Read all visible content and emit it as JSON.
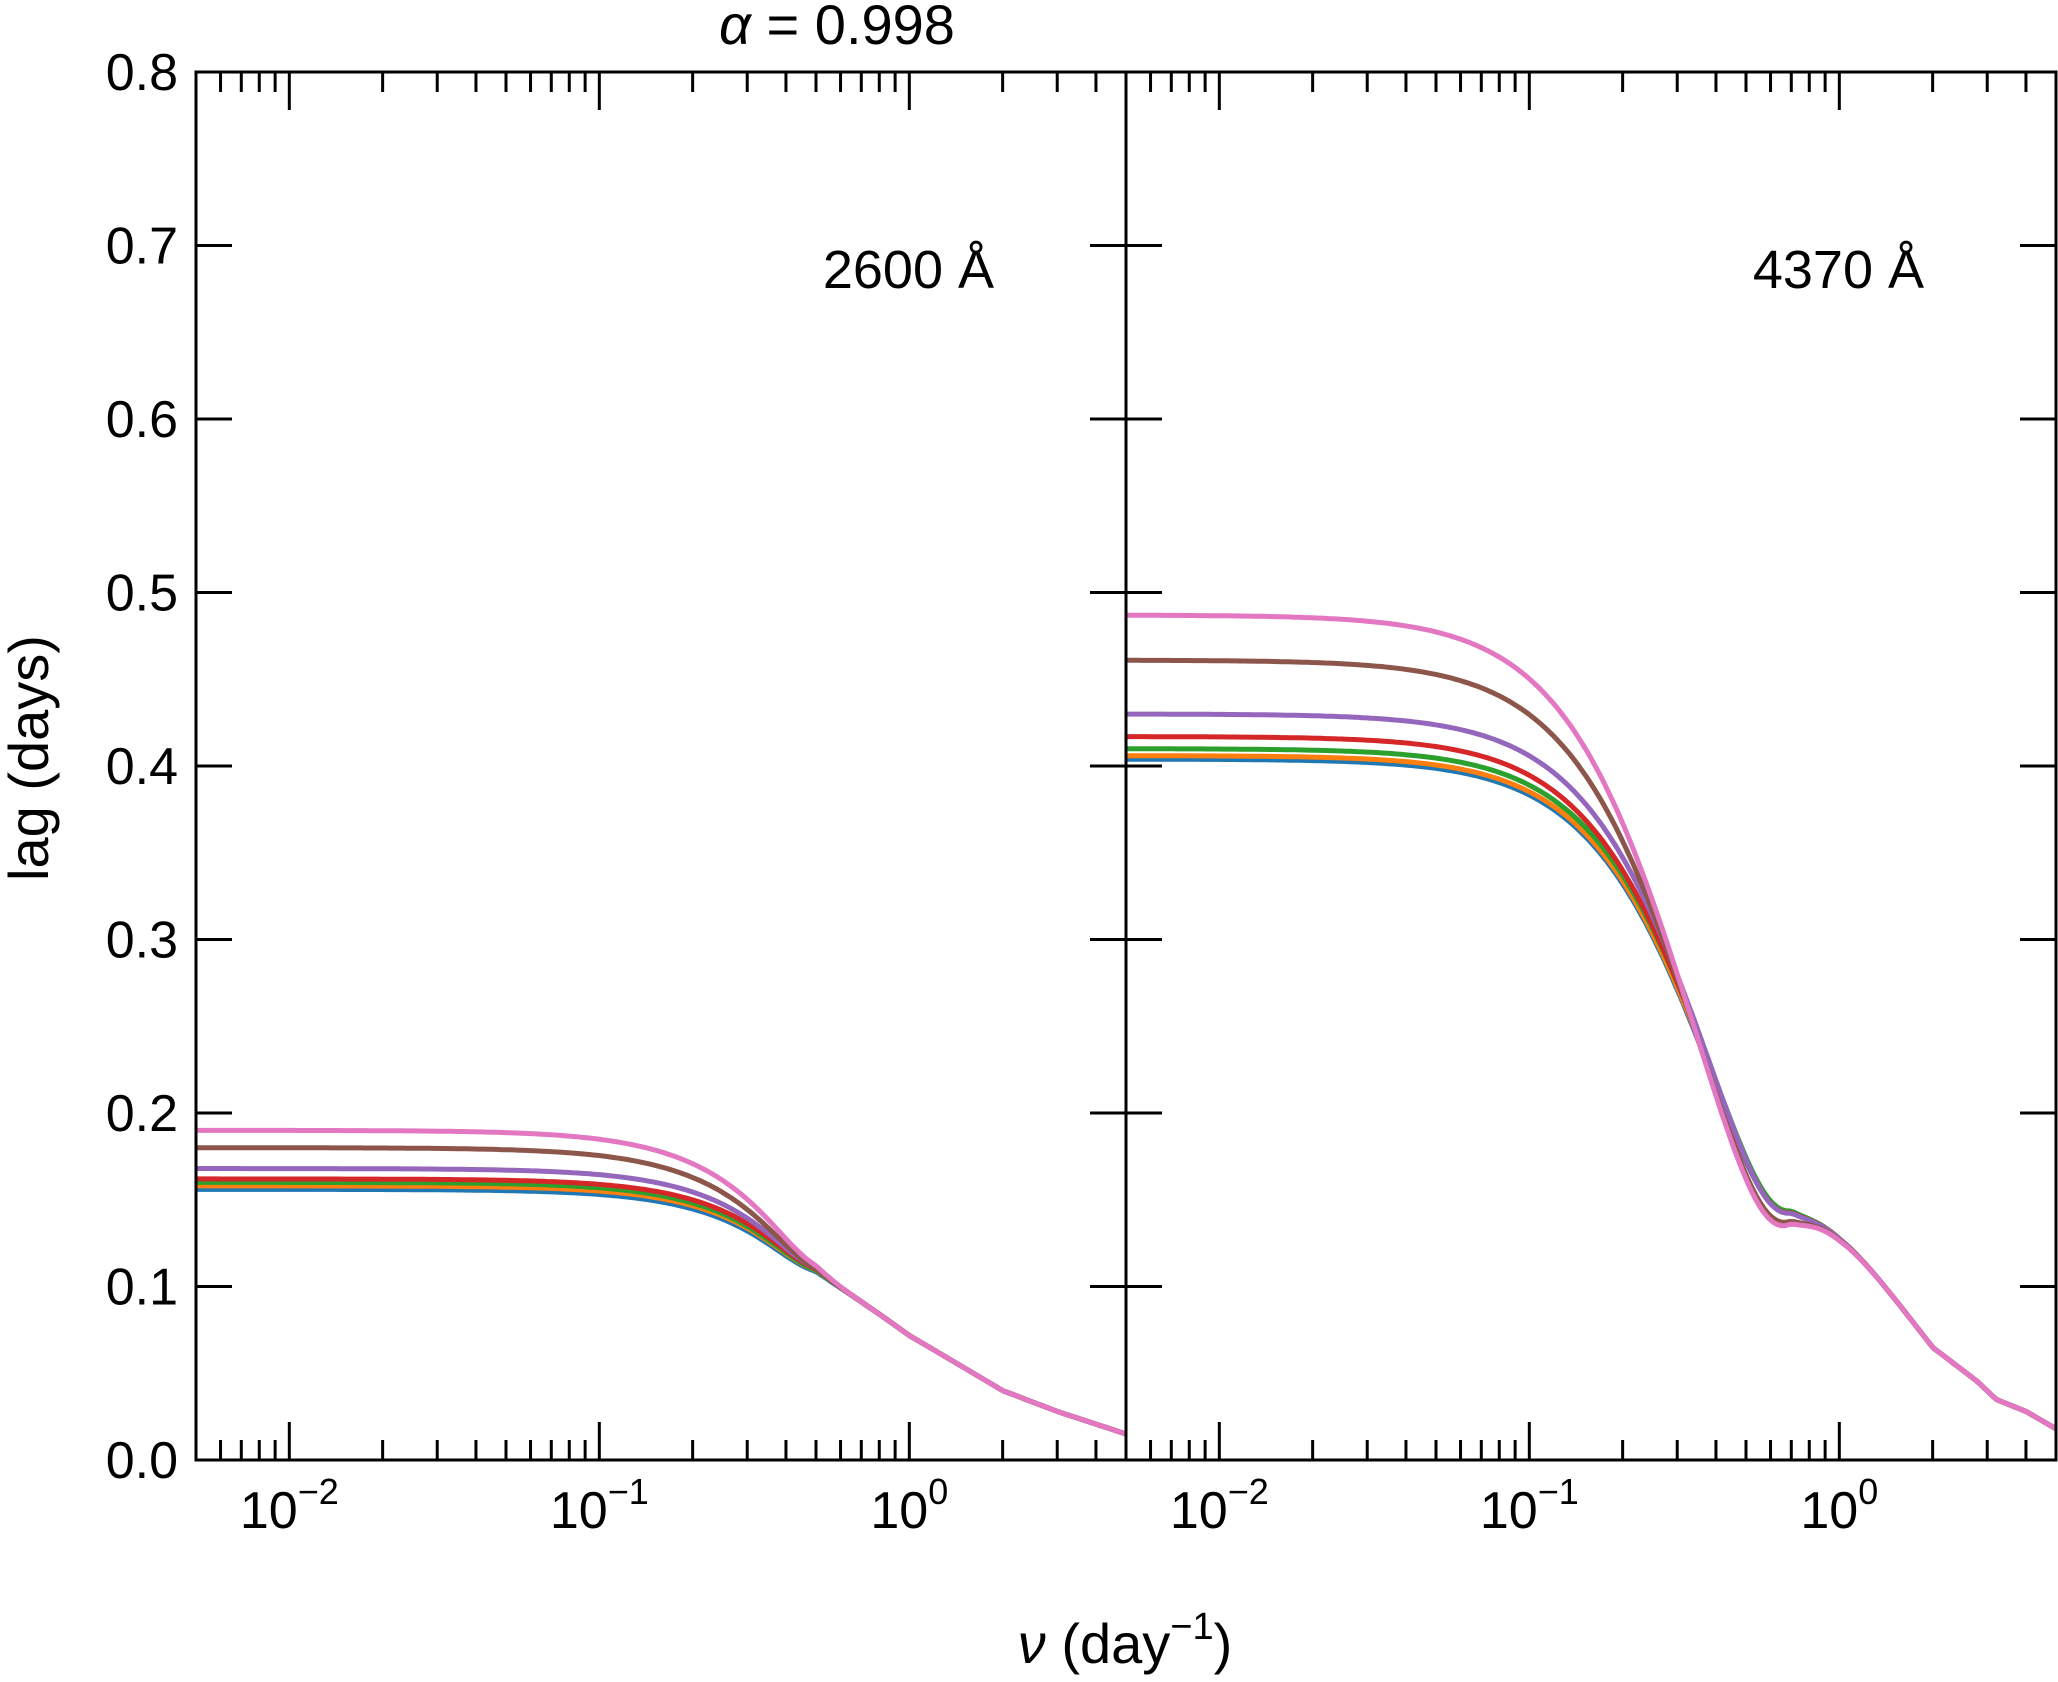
{
  "chart_data": {
    "type": "line",
    "title": "α = 0.998",
    "title_symbol": "α",
    "title_rest": " = 0.998",
    "xlabel": "ν (day−1)",
    "xlabel_symbol": "ν",
    "xlabel_base": "(day",
    "xlabel_sup": "−1",
    "xlabel_close": ")",
    "ylabel": "lag (days)",
    "xscale": "log",
    "xlim": [
      0.005,
      5.0
    ],
    "ylim": [
      0.0,
      0.8
    ],
    "yticks": [
      "0.0",
      "0.1",
      "0.2",
      "0.3",
      "0.4",
      "0.5",
      "0.6",
      "0.7",
      "0.8"
    ],
    "yticks_values": [
      0.0,
      0.1,
      0.2,
      0.3,
      0.4,
      0.5,
      0.6,
      0.7,
      0.8
    ],
    "xticks": [
      {
        "value": 0.01,
        "base": "10",
        "exp": "−2"
      },
      {
        "value": 0.1,
        "base": "10",
        "exp": "−1"
      },
      {
        "value": 1.0,
        "base": "10",
        "exp": "0"
      }
    ],
    "series_colors": [
      "#1f77b4",
      "#ff7f0e",
      "#2ca02c",
      "#d62728",
      "#9467bd",
      "#8c564b",
      "#e377c2"
    ],
    "panels": [
      {
        "label": "2600 Å",
        "low_freq_lags": [
          0.156,
          0.158,
          0.16,
          0.162,
          0.168,
          0.18,
          0.19
        ],
        "half_freq": [
          0.72,
          0.72,
          0.71,
          0.71,
          0.68,
          0.62,
          0.6
        ],
        "steepness": 2.0,
        "tail": {
          "x": [
            0.5,
            1.0,
            2.0,
            3.0,
            5.0
          ],
          "y": [
            0.112,
            0.072,
            0.04,
            0.028,
            0.015
          ]
        }
      },
      {
        "label": "4370 Å",
        "low_freq_lags": [
          0.404,
          0.406,
          0.41,
          0.417,
          0.43,
          0.461,
          0.487
        ],
        "half_freq": [
          0.43,
          0.43,
          0.43,
          0.42,
          0.41,
          0.37,
          0.35
        ],
        "steepness": 2.0,
        "tail": {
          "x": [
            0.7,
            1.0,
            2.0,
            2.8,
            3.2,
            4.0,
            5.0
          ],
          "y": [
            0.175,
            0.135,
            0.065,
            0.045,
            0.035,
            0.028,
            0.018
          ]
        }
      }
    ]
  }
}
